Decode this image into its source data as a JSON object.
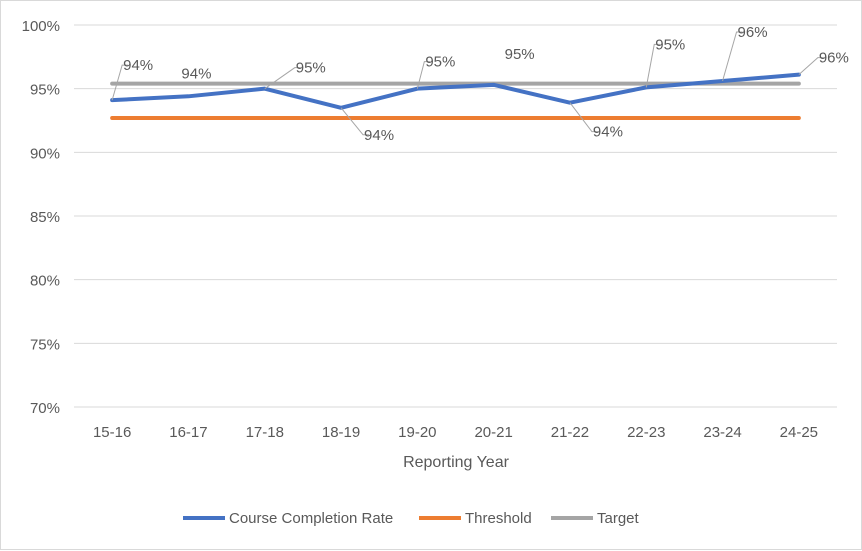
{
  "chart_data": {
    "type": "line",
    "categories": [
      "15-16",
      "16-17",
      "17-18",
      "18-19",
      "19-20",
      "20-21",
      "21-22",
      "22-23",
      "23-24",
      "24-25"
    ],
    "series": [
      {
        "name": "Course Completion Rate",
        "color": "#4472c4",
        "values": [
          94.1,
          94.4,
          95.0,
          93.5,
          95.0,
          95.3,
          93.9,
          95.1,
          95.6,
          96.1
        ],
        "labels": [
          "94%",
          "94%",
          "95%",
          "94%",
          "95%",
          "95%",
          "94%",
          "95%",
          "96%",
          "96%"
        ]
      },
      {
        "name": "Threshold",
        "color": "#ed7d31",
        "values": [
          92.7,
          92.7,
          92.7,
          92.7,
          92.7,
          92.7,
          92.7,
          92.7,
          92.7,
          92.7
        ]
      },
      {
        "name": "Target",
        "color": "#a5a5a5",
        "values": [
          95.4,
          95.4,
          95.4,
          95.4,
          95.4,
          95.4,
          95.4,
          95.4,
          95.4,
          95.4
        ]
      }
    ],
    "xlabel": "Reporting Year",
    "ylabel": "",
    "ylim": [
      70,
      100
    ],
    "yticks": [
      70,
      75,
      80,
      85,
      90,
      95,
      100
    ],
    "ytick_labels": [
      "70%",
      "75%",
      "80%",
      "85%",
      "90%",
      "95%",
      "100%"
    ],
    "grid": "horizontal",
    "legend_position": "bottom"
  }
}
